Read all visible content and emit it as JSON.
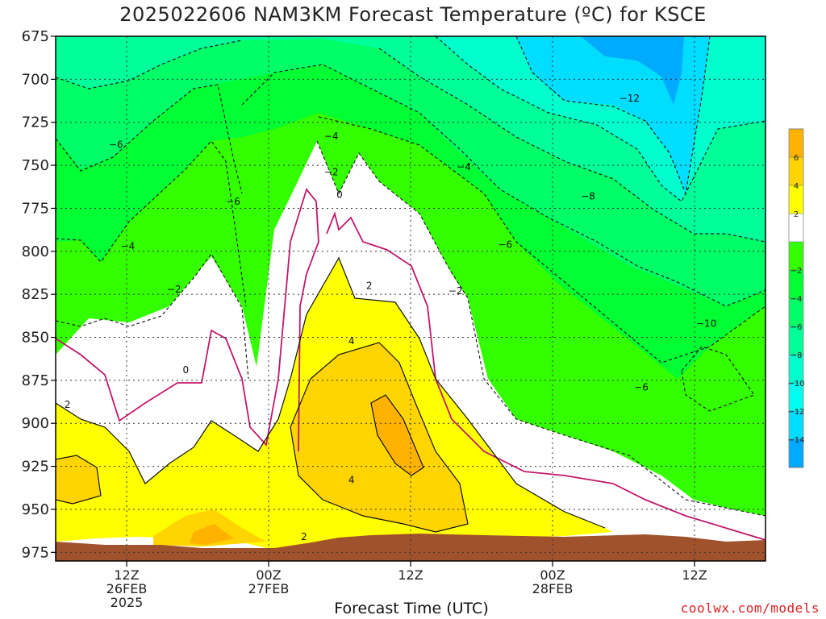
{
  "chart_data": {
    "type": "contour",
    "title": "2025022606 NAM3KM Forecast Temperature (ºC) for KSCE",
    "xlabel": "Forecast Time (UTC)",
    "ylabel": "",
    "credit": "coolwx.com/models",
    "y_axis": {
      "ticks": [
        675,
        700,
        725,
        750,
        775,
        800,
        825,
        850,
        875,
        900,
        925,
        950,
        975
      ],
      "range": [
        675,
        980
      ],
      "inverted": true
    },
    "x_axis": {
      "range_hours": [
        0,
        60
      ],
      "ticks": [
        {
          "hour": 6,
          "lines": [
            "12Z",
            "26FEB",
            "2025"
          ]
        },
        {
          "hour": 18,
          "lines": [
            "00Z",
            "27FEB"
          ]
        },
        {
          "hour": 30,
          "lines": [
            "12Z"
          ]
        },
        {
          "hour": 42,
          "lines": [
            "00Z",
            "28FEB"
          ]
        },
        {
          "hour": 54,
          "lines": [
            "12Z"
          ]
        }
      ]
    },
    "grid": true,
    "colorbar": {
      "levels": [
        "",
        "6",
        "4",
        "2",
        "",
        "−2",
        "−4",
        "−6",
        "−8",
        "−10",
        "−12",
        "−14",
        ""
      ],
      "colors": [
        "#ffb300",
        "#ffd400",
        "#ffff00",
        "#ffffff",
        "#33ff00",
        "#00ff33",
        "#00ff66",
        "#00ff99",
        "#00ffcc",
        "#00ffee",
        "#00ddff",
        "#00aaff"
      ]
    },
    "contour_labels": [
      {
        "text": "−6",
        "hour": 5.1,
        "p": 738
      },
      {
        "text": "−4",
        "hour": 6.1,
        "p": 797
      },
      {
        "text": "−2",
        "hour": 10.0,
        "p": 822
      },
      {
        "text": "0",
        "hour": 11.0,
        "p": 869
      },
      {
        "text": "2",
        "hour": 1.0,
        "p": 889
      },
      {
        "text": "−6",
        "hour": 15.0,
        "p": 771
      },
      {
        "text": "−4",
        "hour": 23.3,
        "p": 733
      },
      {
        "text": "−2",
        "hour": 23.3,
        "p": 754
      },
      {
        "text": "0",
        "hour": 24.0,
        "p": 767
      },
      {
        "text": "2",
        "hour": 26.5,
        "p": 820
      },
      {
        "text": "4",
        "hour": 25.0,
        "p": 852
      },
      {
        "text": "4",
        "hour": 25.0,
        "p": 933
      },
      {
        "text": "2",
        "hour": 21.0,
        "p": 966
      },
      {
        "text": "−4",
        "hour": 34.5,
        "p": 751
      },
      {
        "text": "−2",
        "hour": 33.8,
        "p": 823
      },
      {
        "text": "−6",
        "hour": 38.0,
        "p": 796
      },
      {
        "text": "−8",
        "hour": 45.0,
        "p": 768
      },
      {
        "text": "−12",
        "hour": 48.5,
        "p": 711
      },
      {
        "text": "−10",
        "hour": 55.0,
        "p": 842
      },
      {
        "text": "−6",
        "hour": 49.5,
        "p": 879
      }
    ]
  }
}
